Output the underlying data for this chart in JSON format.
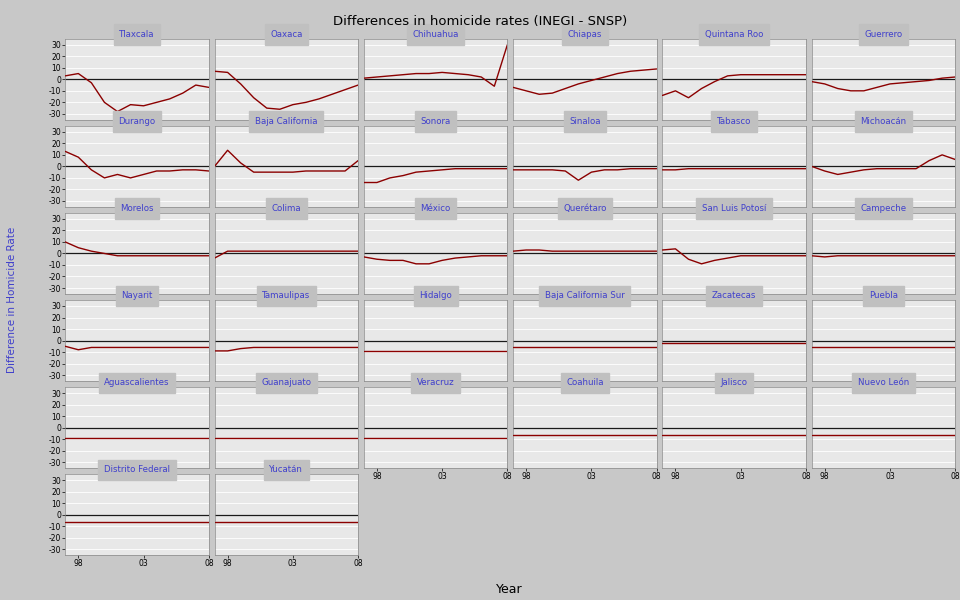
{
  "title": "Differences in homicide rates (INEGI - SNSP)",
  "ylabel": "Difference in Homicide Rate",
  "xlabel": "Year",
  "bg_color": "#C8C8C8",
  "panel_bg": "#E8E8E8",
  "header_bg": "#C0C0C0",
  "line_color": "#8B0000",
  "ref_color": "#1A1A1A",
  "title_color": "#000000",
  "label_color": "#4040CC",
  "years": [
    1997,
    1998,
    1999,
    2000,
    2001,
    2002,
    2003,
    2004,
    2005,
    2006,
    2007,
    2008
  ],
  "states": [
    "Tlaxcala",
    "Oaxaca",
    "Chihuahua",
    "Chiapas",
    "Quintana Roo",
    "Guerrero",
    "Durango",
    "Baja California",
    "Sonora",
    "Sinaloa",
    "Tabasco",
    "Michoacán",
    "Morelos",
    "Colima",
    "México",
    "Querétaro",
    "San Luis Potosí",
    "Campeche",
    "Nayarit",
    "Tamaulipas",
    "Hidalgo",
    "Baja California Sur",
    "Zacatecas",
    "Puebla",
    "Aguascalientes",
    "Guanajuato",
    "Veracruz",
    "Coahuila",
    "Jalisco",
    "Nuevo León",
    "Distrito Federal",
    "Yucatán"
  ],
  "data": {
    "Tlaxcala": [
      3,
      5,
      -3,
      -20,
      -28,
      -22,
      -23,
      -20,
      -17,
      -12,
      -5,
      -7
    ],
    "Oaxaca": [
      7,
      6,
      -4,
      -16,
      -25,
      -26,
      -22,
      -20,
      -17,
      -13,
      -9,
      -5
    ],
    "Chihuahua": [
      1,
      2,
      3,
      4,
      5,
      5,
      6,
      5,
      4,
      2,
      -6,
      30
    ],
    "Chiapas": [
      -7,
      -10,
      -13,
      -12,
      -8,
      -4,
      -1,
      2,
      5,
      7,
      8,
      9
    ],
    "Quintana Roo": [
      -14,
      -10,
      -16,
      -8,
      -2,
      3,
      4,
      4,
      4,
      4,
      4,
      4
    ],
    "Guerrero": [
      -2,
      -4,
      -8,
      -10,
      -10,
      -7,
      -4,
      -3,
      -2,
      -1,
      1,
      2
    ],
    "Durango": [
      13,
      8,
      -3,
      -10,
      -7,
      -10,
      -7,
      -4,
      -4,
      -3,
      -3,
      -4
    ],
    "Baja California": [
      0,
      14,
      3,
      -5,
      -5,
      -5,
      -5,
      -4,
      -4,
      -4,
      -4,
      5
    ],
    "Sonora": [
      -14,
      -14,
      -10,
      -8,
      -5,
      -4,
      -3,
      -2,
      -2,
      -2,
      -2,
      -2
    ],
    "Sinaloa": [
      -3,
      -3,
      -3,
      -3,
      -4,
      -12,
      -5,
      -3,
      -3,
      -2,
      -2,
      -2
    ],
    "Tabasco": [
      -3,
      -3,
      -2,
      -2,
      -2,
      -2,
      -2,
      -2,
      -2,
      -2,
      -2,
      -2
    ],
    "Michoacán": [
      0,
      -4,
      -7,
      -5,
      -3,
      -2,
      -2,
      -2,
      -2,
      5,
      10,
      6
    ],
    "Morelos": [
      10,
      5,
      2,
      0,
      -2,
      -2,
      -2,
      -2,
      -2,
      -2,
      -2,
      -2
    ],
    "Colima": [
      -4,
      2,
      2,
      2,
      2,
      2,
      2,
      2,
      2,
      2,
      2,
      2
    ],
    "México": [
      -3,
      -5,
      -6,
      -6,
      -9,
      -9,
      -6,
      -4,
      -3,
      -2,
      -2,
      -2
    ],
    "Querétaro": [
      2,
      3,
      3,
      2,
      2,
      2,
      2,
      2,
      2,
      2,
      2,
      2
    ],
    "San Luis Potosí": [
      3,
      4,
      -5,
      -9,
      -6,
      -4,
      -2,
      -2,
      -2,
      -2,
      -2,
      -2
    ],
    "Campeche": [
      -2,
      -3,
      -2,
      -2,
      -2,
      -2,
      -2,
      -2,
      -2,
      -2,
      -2,
      -2
    ],
    "Nayarit": [
      -5,
      -8,
      -6,
      -6,
      -6,
      -6,
      -6,
      -6,
      -6,
      -6,
      -6,
      -6
    ],
    "Tamaulipas": [
      -9,
      -9,
      -7,
      -6,
      -6,
      -6,
      -6,
      -6,
      -6,
      -6,
      -6,
      -6
    ],
    "Hidalgo": [
      -9,
      -9,
      -9,
      -9,
      -9,
      -9,
      -9,
      -9,
      -9,
      -9,
      -9,
      -9
    ],
    "Baja California Sur": [
      -6,
      -6,
      -6,
      -6,
      -6,
      -6,
      -6,
      -6,
      -6,
      -6,
      -6,
      -6
    ],
    "Zacatecas": [
      -2,
      -2,
      -2,
      -2,
      -2,
      -2,
      -2,
      -2,
      -2,
      -2,
      -2,
      -2
    ],
    "Puebla": [
      -6,
      -6,
      -6,
      -6,
      -6,
      -6,
      -6,
      -6,
      -6,
      -6,
      -6,
      -6
    ],
    "Aguascalientes": [
      -9,
      -9,
      -9,
      -9,
      -9,
      -9,
      -9,
      -9,
      -9,
      -9,
      -9,
      -9
    ],
    "Guanajuato": [
      -9,
      -9,
      -9,
      -9,
      -9,
      -9,
      -9,
      -9,
      -9,
      -9,
      -9,
      -9
    ],
    "Veracruz": [
      -9,
      -9,
      -9,
      -9,
      -9,
      -9,
      -9,
      -9,
      -9,
      -9,
      -9,
      -9
    ],
    "Coahuila": [
      -6,
      -6,
      -6,
      -6,
      -6,
      -6,
      -6,
      -6,
      -6,
      -6,
      -6,
      -6
    ],
    "Jalisco": [
      -6,
      -6,
      -6,
      -6,
      -6,
      -6,
      -6,
      -6,
      -6,
      -6,
      -6,
      -6
    ],
    "Nuevo León": [
      -6,
      -6,
      -6,
      -6,
      -6,
      -6,
      -6,
      -6,
      -6,
      -6,
      -6,
      -6
    ],
    "Distrito Federal": [
      -6,
      -6,
      -6,
      -6,
      -6,
      -6,
      -6,
      -6,
      -6,
      -6,
      -6,
      -6
    ],
    "Yucatán": [
      -6,
      -6,
      -6,
      -6,
      -6,
      -6,
      -6,
      -6,
      -6,
      -6,
      -6,
      -6
    ]
  },
  "ncols": 6,
  "ylim": [
    -35,
    35
  ],
  "yticks": [
    -30,
    -20,
    -10,
    0,
    10,
    20,
    30
  ],
  "xtick_positions": [
    1998,
    2003,
    2008
  ],
  "xtick_labels": [
    "98",
    "03",
    "08"
  ]
}
